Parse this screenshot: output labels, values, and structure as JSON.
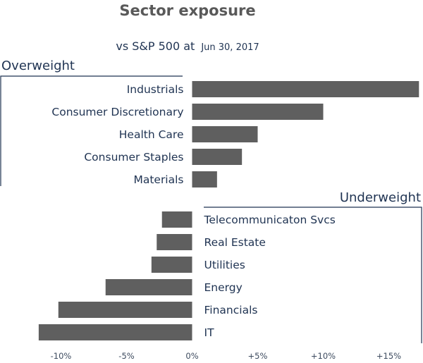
{
  "title": "Sector exposure",
  "subtitle": {
    "main": "vs S&P 500 at",
    "date": "Jun 30, 2017"
  },
  "colors": {
    "bar": "#5f5f5f",
    "text": "#1f3352",
    "title": "#595959"
  },
  "chart_data": {
    "type": "bar",
    "orientation": "horizontal",
    "title": "Sector exposure",
    "subtitle": "vs S&P 500 at Jun 30, 2017",
    "xlim": [
      -12,
      17
    ],
    "xticks": [
      {
        "value": -10,
        "label": "-10%"
      },
      {
        "value": -5,
        "label": "-5%"
      },
      {
        "value": 0,
        "label": "0%"
      },
      {
        "value": 5,
        "label": "+5%"
      },
      {
        "value": 10,
        "label": "+10%"
      },
      {
        "value": 15,
        "label": "+15%"
      }
    ],
    "groups": [
      {
        "label": "Overweight",
        "categories": [
          "Industrials",
          "Consumer Discretionary",
          "Health Care",
          "Consumer Staples",
          "Materials"
        ],
        "values": [
          17.3,
          10.0,
          5.0,
          3.8,
          1.9
        ]
      },
      {
        "label": "Underweight",
        "categories": [
          "Telecommunicaton Svcs",
          "Real Estate",
          "Utilities",
          "Energy",
          "Financials",
          "IT"
        ],
        "values": [
          -2.3,
          -2.7,
          -3.1,
          -6.6,
          -10.2,
          -11.7
        ]
      }
    ]
  }
}
